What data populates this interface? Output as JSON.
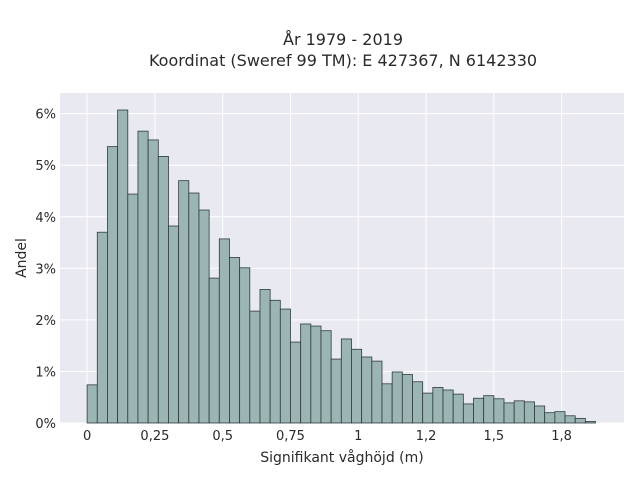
{
  "chart_data": {
    "type": "bar",
    "title": "År 1979 - 2019",
    "subtitle": "Koordinat (Sweref 99 TM): E 427367, N 6142330",
    "xlabel": "Signifikant våghöjd (m)",
    "ylabel": "Andel",
    "bin_width": 0.0375,
    "x_start": 0,
    "values": [
      0.74,
      3.7,
      5.36,
      6.07,
      4.44,
      5.66,
      5.49,
      5.17,
      3.82,
      4.7,
      4.46,
      4.13,
      2.81,
      3.57,
      3.21,
      3.01,
      2.17,
      2.59,
      2.38,
      2.21,
      1.57,
      1.92,
      1.88,
      1.79,
      1.24,
      1.63,
      1.43,
      1.28,
      1.2,
      0.76,
      0.99,
      0.94,
      0.8,
      0.58,
      0.69,
      0.64,
      0.56,
      0.37,
      0.48,
      0.53,
      0.47,
      0.39,
      0.43,
      0.41,
      0.33,
      0.2,
      0.22,
      0.14,
      0.09,
      0.03
    ],
    "xlim": [
      -0.1,
      1.98
    ],
    "ylim": [
      0,
      6.4
    ],
    "x_ticks": [
      0,
      0.25,
      0.5,
      0.75,
      1,
      1.25,
      1.5,
      1.75
    ],
    "x_tick_labels": [
      "0",
      "0,25",
      "0,5",
      "0,75",
      "1",
      "1,2",
      "1,5",
      "1,8"
    ],
    "y_ticks": [
      0,
      1,
      2,
      3,
      4,
      5,
      6
    ],
    "y_tick_labels": [
      "0%",
      "1%",
      "2%",
      "3%",
      "4%",
      "5%",
      "6%"
    ],
    "grid": true,
    "colors": {
      "bar": "#9ab5b4",
      "bar_edge": "#2f3b3b",
      "plot_bg": "#e9e9f1",
      "grid": "#ffffff"
    }
  }
}
